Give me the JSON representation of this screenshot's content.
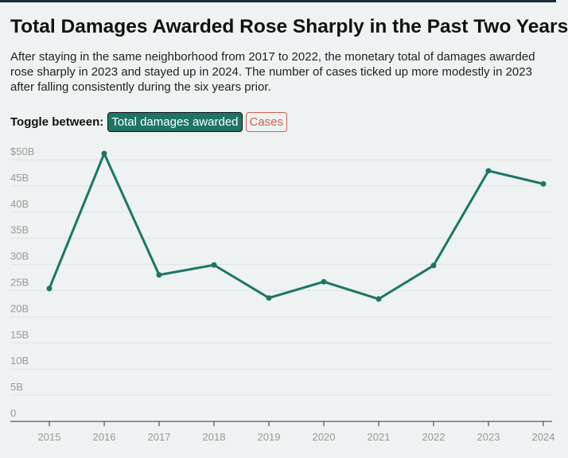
{
  "chart_data": {
    "type": "line",
    "title": "Total Damages Awarded Rose Sharply in the Past Two Years",
    "subtitle": "After staying in the same neighborhood from 2017 to 2022, the monetary total of damages awarded rose sharply in 2023 and stayed up in 2024. The number of cases ticked up more modestly in 2023 after falling consistently during the six years prior.",
    "categories": [
      "2015",
      "2016",
      "2017",
      "2018",
      "2019",
      "2020",
      "2021",
      "2022",
      "2023",
      "2024"
    ],
    "series": [
      {
        "name": "Total damages awarded",
        "color": "#1e7566",
        "values": [
          25.4,
          51.2,
          28.0,
          29.9,
          23.6,
          26.7,
          23.4,
          29.8,
          47.9,
          45.4
        ]
      }
    ],
    "ylim": [
      0,
      50
    ],
    "yticks": [
      0,
      {
        "value": 5,
        "label": "5B"
      },
      {
        "value": 10,
        "label": "10B"
      },
      {
        "value": 15,
        "label": "15B"
      },
      {
        "value": 20,
        "label": "20B"
      },
      {
        "value": 25,
        "label": "25B"
      },
      {
        "value": 30,
        "label": "30B"
      },
      {
        "value": 35,
        "label": "35B"
      },
      {
        "value": 40,
        "label": "40B"
      },
      {
        "value": 45,
        "label": "45B"
      },
      {
        "value": 50,
        "label": "$50B"
      }
    ],
    "grid": true
  },
  "toggle": {
    "label": "Toggle between:",
    "options": [
      "Total damages awarded",
      "Cases"
    ]
  }
}
